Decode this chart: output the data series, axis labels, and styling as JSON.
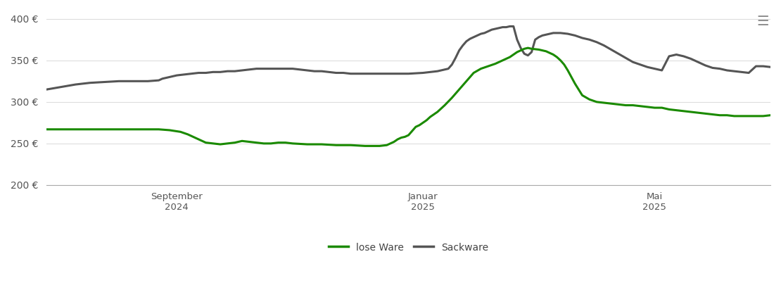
{
  "title": "",
  "background_color": "#ffffff",
  "grid_color": "#dddddd",
  "ylim": [
    200,
    410
  ],
  "yticks": [
    200,
    250,
    300,
    350,
    400
  ],
  "ylabel_format": "{} €",
  "x_tick_labels": [
    "September\n2024",
    "Januar\n2025",
    "Mai\n2025"
  ],
  "x_tick_positions": [
    0.18,
    0.52,
    0.84
  ],
  "legend_labels": [
    "lose Ware",
    "Sackware"
  ],
  "legend_colors": [
    "#1a8a00",
    "#555555"
  ],
  "line_width": 2.2,
  "lose_ware_color": "#1a8a00",
  "sackware_color": "#555555",
  "lose_ware": {
    "x": [
      0.0,
      0.04,
      0.08,
      0.12,
      0.155,
      0.17,
      0.185,
      0.195,
      0.21,
      0.22,
      0.24,
      0.26,
      0.27,
      0.28,
      0.29,
      0.3,
      0.31,
      0.32,
      0.33,
      0.34,
      0.36,
      0.38,
      0.4,
      0.42,
      0.44,
      0.46,
      0.47,
      0.48,
      0.485,
      0.49,
      0.495,
      0.5,
      0.505,
      0.51,
      0.515,
      0.52,
      0.525,
      0.53,
      0.535,
      0.54,
      0.545,
      0.55,
      0.56,
      0.57,
      0.58,
      0.59,
      0.6,
      0.61,
      0.62,
      0.63,
      0.64,
      0.645,
      0.65,
      0.655,
      0.66,
      0.665,
      0.67,
      0.68,
      0.69,
      0.695,
      0.7,
      0.705,
      0.71,
      0.715,
      0.72,
      0.725,
      0.73,
      0.735,
      0.74,
      0.75,
      0.76,
      0.77,
      0.78,
      0.79,
      0.8,
      0.81,
      0.82,
      0.83,
      0.84,
      0.85,
      0.86,
      0.87,
      0.88,
      0.89,
      0.9,
      0.91,
      0.92,
      0.93,
      0.94,
      0.95,
      0.96,
      0.97,
      0.98,
      0.99,
      1.0
    ],
    "y": [
      267,
      267,
      267,
      267,
      267,
      266,
      264,
      261,
      255,
      251,
      249,
      251,
      253,
      252,
      251,
      250,
      250,
      251,
      251,
      250,
      249,
      249,
      248,
      248,
      247,
      247,
      248,
      252,
      255,
      257,
      258,
      260,
      265,
      270,
      272,
      275,
      278,
      282,
      285,
      288,
      292,
      296,
      305,
      315,
      325,
      335,
      340,
      343,
      346,
      350,
      354,
      357,
      360,
      362,
      364,
      365,
      364,
      363,
      361,
      359,
      357,
      354,
      350,
      345,
      338,
      330,
      322,
      315,
      308,
      303,
      300,
      299,
      298,
      297,
      296,
      296,
      295,
      294,
      293,
      293,
      291,
      290,
      289,
      288,
      287,
      286,
      285,
      284,
      284,
      283,
      283,
      283,
      283,
      283,
      284
    ]
  },
  "sackware": {
    "x": [
      0.0,
      0.02,
      0.04,
      0.06,
      0.08,
      0.1,
      0.12,
      0.14,
      0.155,
      0.16,
      0.17,
      0.18,
      0.19,
      0.2,
      0.21,
      0.22,
      0.23,
      0.24,
      0.25,
      0.26,
      0.27,
      0.28,
      0.29,
      0.3,
      0.31,
      0.32,
      0.33,
      0.34,
      0.35,
      0.36,
      0.37,
      0.38,
      0.39,
      0.4,
      0.41,
      0.42,
      0.43,
      0.44,
      0.46,
      0.48,
      0.5,
      0.52,
      0.54,
      0.555,
      0.56,
      0.565,
      0.57,
      0.575,
      0.58,
      0.585,
      0.59,
      0.595,
      0.6,
      0.605,
      0.61,
      0.615,
      0.62,
      0.625,
      0.63,
      0.635,
      0.64,
      0.645,
      0.65,
      0.655,
      0.66,
      0.665,
      0.67,
      0.675,
      0.68,
      0.685,
      0.69,
      0.695,
      0.7,
      0.71,
      0.72,
      0.73,
      0.74,
      0.75,
      0.76,
      0.77,
      0.78,
      0.79,
      0.8,
      0.81,
      0.82,
      0.83,
      0.84,
      0.85,
      0.86,
      0.87,
      0.88,
      0.89,
      0.9,
      0.91,
      0.92,
      0.93,
      0.94,
      0.95,
      0.96,
      0.97,
      0.98,
      0.99,
      1.0
    ],
    "y": [
      315,
      318,
      321,
      323,
      324,
      325,
      325,
      325,
      326,
      328,
      330,
      332,
      333,
      334,
      335,
      335,
      336,
      336,
      337,
      337,
      338,
      339,
      340,
      340,
      340,
      340,
      340,
      340,
      339,
      338,
      337,
      337,
      336,
      335,
      335,
      334,
      334,
      334,
      334,
      334,
      334,
      335,
      337,
      340,
      345,
      353,
      362,
      368,
      373,
      376,
      378,
      380,
      382,
      383,
      385,
      387,
      388,
      389,
      390,
      390,
      391,
      391,
      375,
      365,
      358,
      356,
      360,
      375,
      378,
      380,
      381,
      382,
      383,
      383,
      382,
      380,
      377,
      375,
      372,
      368,
      363,
      358,
      353,
      348,
      345,
      342,
      340,
      338,
      355,
      357,
      355,
      352,
      348,
      344,
      341,
      340,
      338,
      337,
      336,
      335,
      343,
      343,
      342
    ]
  }
}
